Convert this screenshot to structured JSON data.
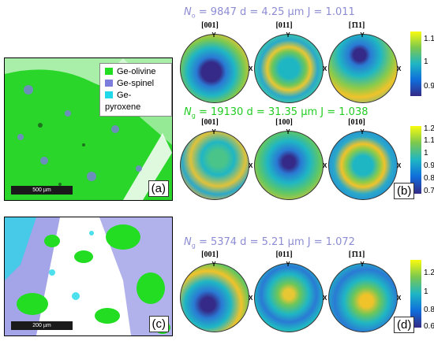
{
  "panels": {
    "a_label": "(a)",
    "b_label": "(b)",
    "c_label": "(c)",
    "d_label": "(d)"
  },
  "legend": {
    "items": [
      {
        "label": "Ge-olivine",
        "color": "#22dd22"
      },
      {
        "label": "Ge-spinel",
        "color": "#7d7dde"
      },
      {
        "label": "Ge-pyroxene",
        "color": "#20d8e8"
      }
    ]
  },
  "scalebars": {
    "a": "500 µm",
    "c": "200 µm"
  },
  "b": {
    "header1": {
      "n": "N",
      "sub": "o",
      "rest": " = 9847  d = 4.25 µm  J = 1.011",
      "color": "#8c8cd4"
    },
    "pf1": [
      "[001]",
      "[011]",
      "[1̄11]"
    ],
    "colorbar1": [
      "1.1",
      "1",
      "0.9"
    ],
    "header2": {
      "n": "N",
      "sub": "g",
      "rest": " = 19130  d = 31.35 µm  J = 1.038",
      "color": "#22cc22"
    },
    "pf2": [
      "[001]",
      "[100]",
      "[010]"
    ],
    "colorbar2": [
      "1.2",
      "1.1",
      "1",
      "0.9",
      "0.8",
      "0.7"
    ]
  },
  "d": {
    "header": {
      "n": "N",
      "sub": "g",
      "rest": " = 5374  d = 5.21 µm  J = 1.072",
      "color": "#8c8cd4"
    },
    "pf": [
      "[001]",
      "[011]",
      "[1̄11]"
    ],
    "colorbar": [
      "1.2",
      "1",
      "0.8",
      "0.6"
    ]
  },
  "axes": {
    "y": "Y",
    "x": "X"
  },
  "colors": {
    "olivine": "#22dd22",
    "spinel": "#7d7dde",
    "pyroxene": "#20d8e8",
    "parula_low": "#352a87",
    "parula_mid": "#1fb6c4",
    "parula_high": "#f9fb0e"
  }
}
